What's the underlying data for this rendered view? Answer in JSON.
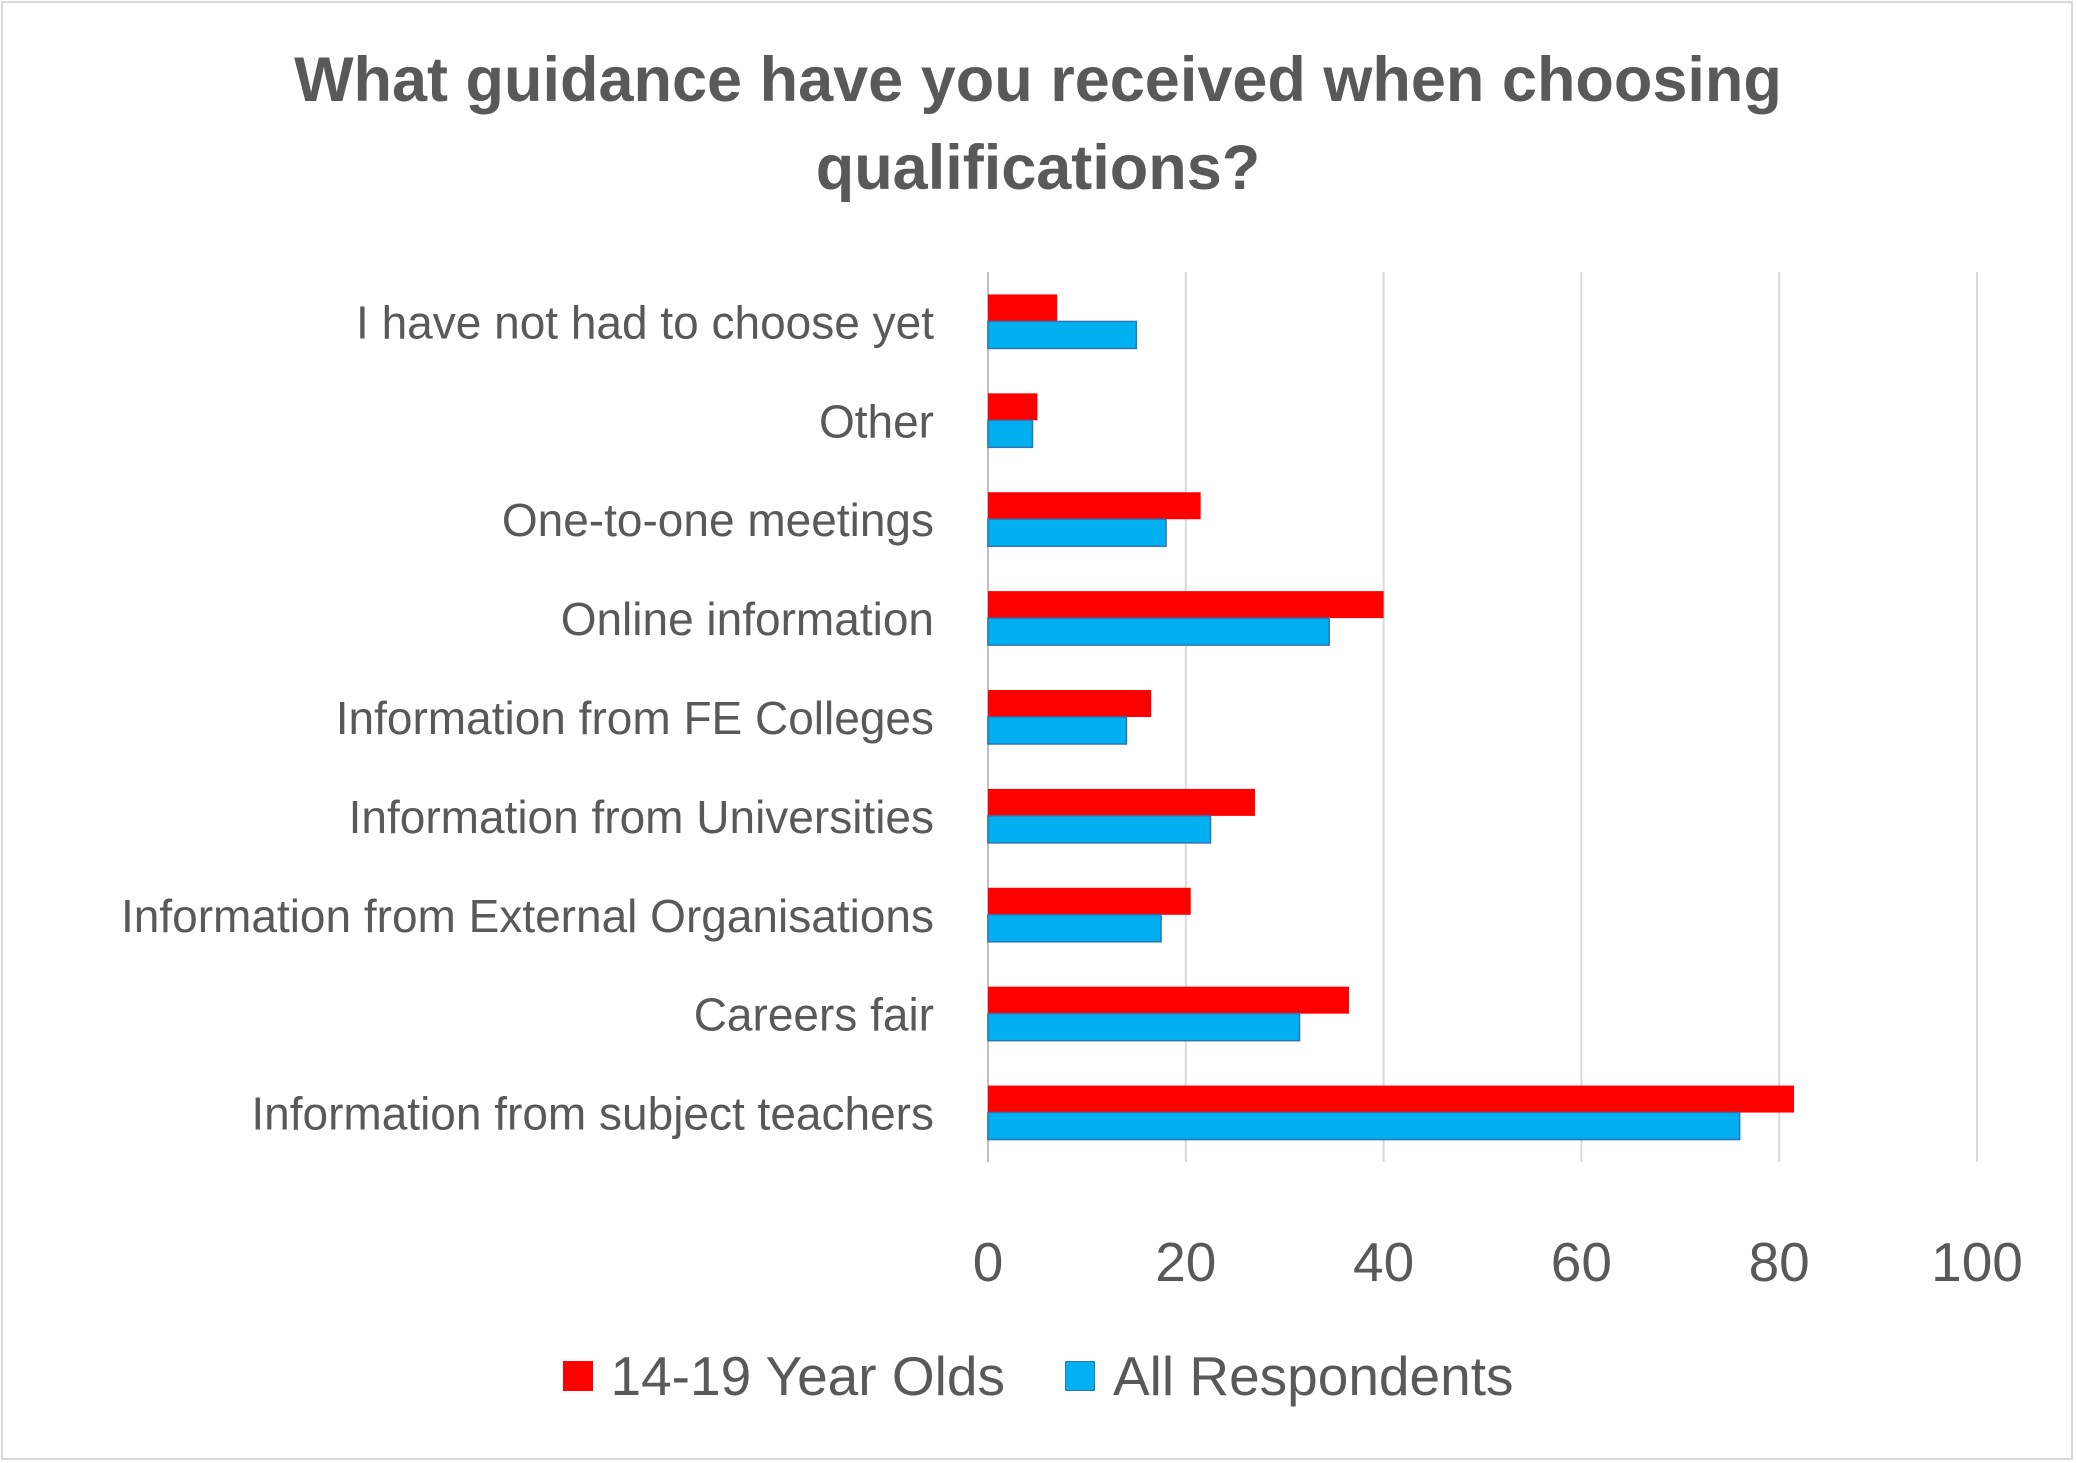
{
  "title_lines": [
    "What guidance have you received when choosing",
    "qualifications?"
  ],
  "legend": [
    {
      "label": "14-19 Year Olds",
      "color": "#ff0000"
    },
    {
      "label": "All Respondents",
      "color": "#00b0f0"
    }
  ],
  "chart_data": {
    "type": "bar",
    "orientation": "horizontal",
    "title": "What guidance have you received when choosing qualifications?",
    "categories": [
      "I have not had to choose yet",
      "Other",
      "One-to-one meetings",
      "Online information",
      "Information from FE Colleges",
      "Information from Universities",
      "Information from External Organisations",
      "Careers fair",
      "Information from subject teachers"
    ],
    "series": [
      {
        "name": "14-19 Year Olds",
        "color": "#ff0000",
        "values": [
          7,
          5,
          21.5,
          40,
          16.5,
          27,
          20.5,
          36.5,
          81.5
        ]
      },
      {
        "name": "All Respondents",
        "color": "#00b0f0",
        "values": [
          15,
          4.5,
          18,
          34.5,
          14,
          22.5,
          17.5,
          31.5,
          76
        ]
      }
    ],
    "xlim": [
      0,
      100
    ],
    "xticks": [
      "0",
      "20",
      "40",
      "60",
      "80",
      "100"
    ],
    "grid": true,
    "legend_position": "bottom"
  }
}
